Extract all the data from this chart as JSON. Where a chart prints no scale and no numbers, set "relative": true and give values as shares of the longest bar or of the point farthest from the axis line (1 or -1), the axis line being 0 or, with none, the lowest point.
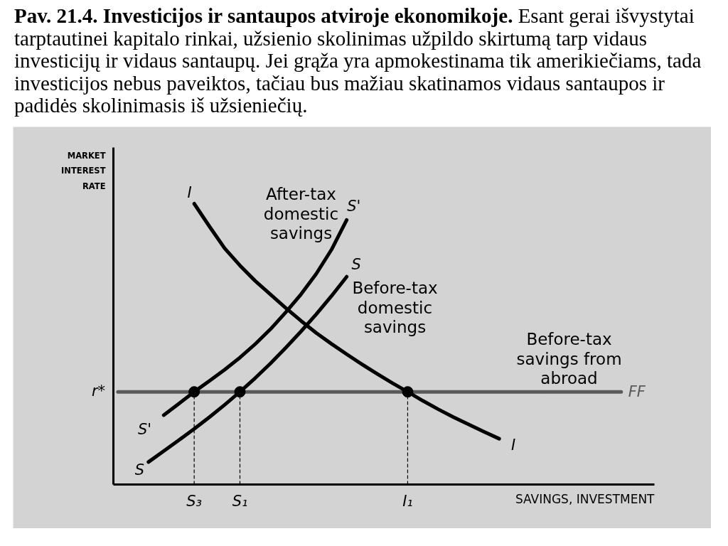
{
  "chart_data": {
    "type": "line",
    "title": "Pav. 21.4. Investicijos ir santaupos atviroje ekonomikoje.",
    "subtitle": "Esant gerai išvystytai tarptautinei kapitalo rinkai, užsienio skolinimas užpildo skirtumą tarp vidaus investicijų ir vidaus santaupų. Jei grąža yra apmokestinama tik amerikiečiams, tada investicijos nebus paveiktos, tačiau bus mažiau skatinamos vidaus santaupos ir padidės skolinimasis iš užsieniečių.",
    "xlabel": "SAVINGS, INVESTMENT",
    "ylabel": "MARKET INTEREST RATE",
    "relative": true,
    "categories": [
      null,
      null,
      null,
      null,
      null,
      "S₃",
      null,
      null,
      "S₁",
      null,
      null,
      null,
      null,
      null,
      null,
      null,
      null,
      null,
      null,
      "I₁",
      null,
      null,
      null,
      null,
      null,
      null,
      null,
      null,
      null,
      null,
      null,
      null,
      null,
      null,
      null,
      null
    ],
    "series": [
      {
        "name": "FF",
        "color": "#5a5a5a",
        "values": [
          0.33,
          0.33,
          0.33,
          0.33,
          0.33,
          0.33,
          0.33,
          0.33,
          0.33,
          0.33,
          0.33,
          0.33,
          0.33,
          0.33,
          0.33,
          0.33,
          0.33,
          0.33,
          0.33,
          0.33,
          0.33,
          0.33,
          0.33,
          0.33,
          0.33,
          0.33,
          0.33,
          0.33,
          0.33,
          0.33,
          0.33,
          0.33,
          0.33,
          0.33,
          null,
          null
        ]
      },
      {
        "name": "I",
        "color": "#000000",
        "values": [
          null,
          null,
          null,
          null,
          null,
          1.0,
          0.919,
          0.841,
          0.78,
          0.725,
          0.677,
          0.629,
          0.583,
          0.54,
          0.501,
          0.464,
          0.428,
          0.394,
          0.361,
          0.33,
          0.298,
          0.268,
          0.24,
          0.214,
          0.188,
          0.163,
          null,
          null,
          null,
          null,
          null,
          null,
          null,
          null,
          null,
          null
        ]
      },
      {
        "name": "S'",
        "color": "#000000",
        "values": [
          null,
          null,
          null,
          0.247,
          0.288,
          0.33,
          0.369,
          0.409,
          0.452,
          0.5,
          0.553,
          0.613,
          0.677,
          0.75,
          0.836,
          0.942,
          null,
          null,
          null,
          null,
          null,
          null,
          null,
          null,
          null,
          null,
          null,
          null,
          null,
          null,
          null,
          null,
          null,
          null,
          null,
          null
        ]
      },
      {
        "name": "S",
        "color": "#000000",
        "values": [
          null,
          null,
          0.08,
          0.119,
          0.158,
          0.198,
          0.24,
          0.284,
          0.33,
          0.379,
          0.431,
          0.487,
          0.545,
          0.606,
          0.671,
          0.74,
          null,
          null,
          null,
          null,
          null,
          null,
          null,
          null,
          null,
          null,
          null,
          null,
          null,
          null,
          null,
          null,
          null,
          null,
          null,
          null
        ]
      },
      {
        "type": "lollipop",
        "marker": "circle",
        "color": "#000000",
        "line_style": "dashed",
        "values": [
          null,
          null,
          null,
          null,
          null,
          0.33,
          null,
          null,
          0.33,
          null,
          null,
          null,
          null,
          null,
          null,
          null,
          null,
          null,
          null,
          0.33,
          null,
          null,
          null,
          null,
          null,
          null,
          null,
          null,
          null,
          null,
          null,
          null,
          null,
          null,
          null,
          null
        ]
      }
    ],
    "annotations": [
      "I",
      "S'",
      "S",
      "After-tax domestic savings",
      "Before-tax domestic savings",
      "Before-tax savings from abroad",
      "r*"
    ]
  }
}
